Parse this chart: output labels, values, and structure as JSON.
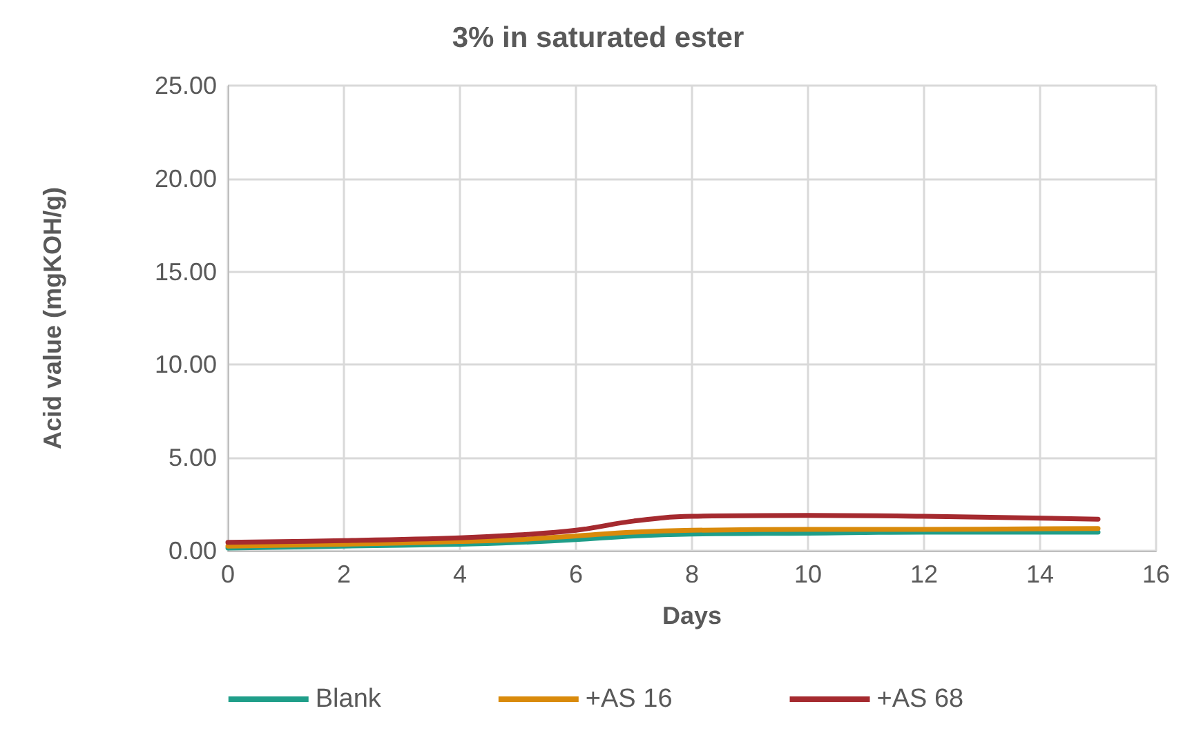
{
  "chart_data": {
    "type": "line",
    "title": "3% in saturated ester",
    "xlabel": "Days",
    "ylabel": "Acid value (mgKOH/g)",
    "x": [
      0,
      2,
      4,
      5,
      6,
      7,
      8,
      10,
      12,
      15
    ],
    "series": [
      {
        "name": "Blank",
        "color": "#1f9e89",
        "values": [
          0.15,
          0.25,
          0.35,
          0.45,
          0.6,
          0.8,
          0.9,
          0.95,
          1.0,
          1.0
        ]
      },
      {
        "name": "+AS 16",
        "color": "#d98a0b",
        "values": [
          0.25,
          0.35,
          0.5,
          0.6,
          0.8,
          1.0,
          1.1,
          1.15,
          1.15,
          1.2
        ]
      },
      {
        "name": "+AS 68",
        "color": "#a52a2f",
        "values": [
          0.45,
          0.55,
          0.7,
          0.85,
          1.1,
          1.6,
          1.85,
          1.9,
          1.85,
          1.7
        ]
      }
    ],
    "xlim": [
      0,
      16
    ],
    "xticks": [
      0,
      2,
      4,
      6,
      8,
      10,
      12,
      14,
      16
    ],
    "ylim": [
      0,
      25
    ],
    "yticks": [
      {
        "value": 0,
        "label": "0.00"
      },
      {
        "value": 5,
        "label": "5.00"
      },
      {
        "value": 10,
        "label": "10.00"
      },
      {
        "value": 15,
        "label": "15.00"
      },
      {
        "value": 20,
        "label": "20.00"
      },
      {
        "value": 25,
        "label": "25.00"
      }
    ],
    "grid": true,
    "legend": "bottom",
    "marker": "none",
    "line_style": "solid"
  }
}
